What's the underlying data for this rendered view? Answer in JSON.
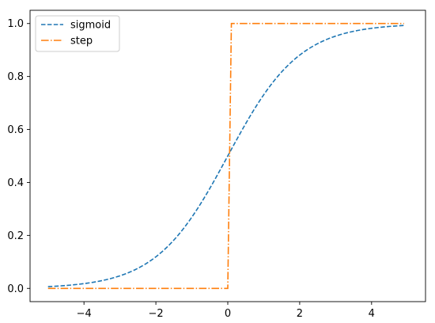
{
  "chart_data": {
    "type": "line",
    "title": "",
    "xlabel": "",
    "ylabel": "",
    "xlim": [
      -5.5,
      5.5
    ],
    "ylim": [
      -0.05,
      1.05
    ],
    "x_ticks": [
      -4,
      -2,
      0,
      2,
      4
    ],
    "y_ticks": [
      0.0,
      0.2,
      0.4,
      0.6,
      0.8,
      1.0
    ],
    "x_tick_labels": [
      "−4",
      "−2",
      "0",
      "2",
      "4"
    ],
    "y_tick_labels": [
      "0.0",
      "0.2",
      "0.4",
      "0.6",
      "0.8",
      "1.0"
    ],
    "grid": false,
    "legend_position": "top-left",
    "series": [
      {
        "name": "sigmoid",
        "color": "#1f77b4",
        "style": "dashed",
        "function": "sigmoid",
        "x_range": [
          -5,
          4.9
        ],
        "x": [
          -5,
          -4,
          -3,
          -2,
          -1,
          0,
          1,
          2,
          3,
          4,
          4.9
        ],
        "values": [
          0.0067,
          0.018,
          0.047,
          0.119,
          0.269,
          0.5,
          0.731,
          0.881,
          0.953,
          0.982,
          0.993
        ]
      },
      {
        "name": "step",
        "color": "#ff7f0e",
        "style": "dashdot",
        "function": "step",
        "x": [
          -5,
          0.0,
          0.1,
          4.9
        ],
        "values": [
          0,
          0,
          1,
          1
        ]
      }
    ]
  }
}
